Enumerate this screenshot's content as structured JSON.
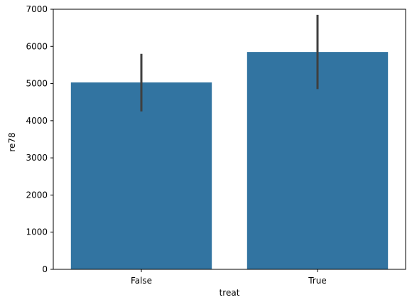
{
  "chart_data": {
    "type": "bar",
    "title": "",
    "xlabel": "treat",
    "ylabel": "re78",
    "categories": [
      "False",
      "True"
    ],
    "values": [
      5030,
      5850
    ],
    "error_bars": [
      {
        "low": 4250,
        "high": 5800
      },
      {
        "low": 4850,
        "high": 6850
      }
    ],
    "ylim": [
      0,
      7000
    ],
    "yticks": [
      0,
      1000,
      2000,
      3000,
      4000,
      5000,
      6000,
      7000
    ],
    "grid": false,
    "legend": "none",
    "colors": {
      "bar": "#3274a1",
      "error_bar": "#3f3f3f",
      "axis": "#000000"
    }
  }
}
